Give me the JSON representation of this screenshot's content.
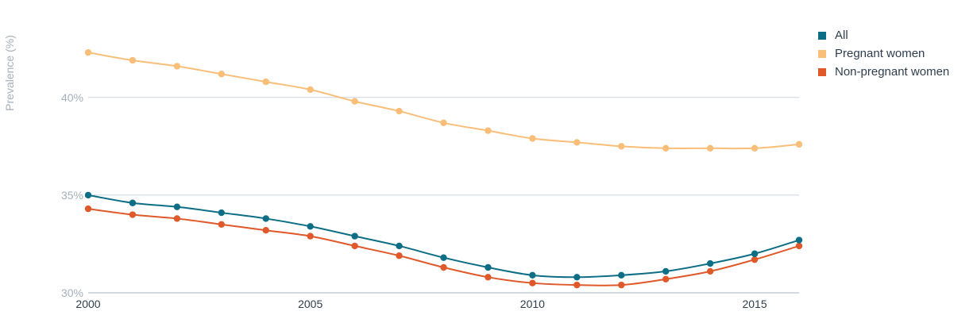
{
  "chart_data": {
    "type": "line",
    "ylabel": "Prevalence (%)",
    "xlabel": "",
    "x": [
      2000,
      2001,
      2002,
      2003,
      2004,
      2005,
      2006,
      2007,
      2008,
      2009,
      2010,
      2011,
      2012,
      2013,
      2014,
      2015,
      2016
    ],
    "xticks": [
      2000,
      2005,
      2010,
      2015
    ],
    "xtick_labels": [
      "2000",
      "2005",
      "2010",
      "2015"
    ],
    "xlim": [
      2000,
      2016
    ],
    "yticks": [
      30,
      35,
      40
    ],
    "ytick_labels": [
      "30%",
      "35%",
      "40%"
    ],
    "ylim": [
      30,
      44.5
    ],
    "grid": "horizontal",
    "legend_position": "top-right",
    "series": [
      {
        "name": "All",
        "color": "#0e6e85",
        "values": [
          35.0,
          34.6,
          34.4,
          34.1,
          33.8,
          33.4,
          32.9,
          32.4,
          31.8,
          31.3,
          30.9,
          30.8,
          30.9,
          31.1,
          31.5,
          32.0,
          32.7
        ]
      },
      {
        "name": "Pregnant women",
        "color": "#f9be78",
        "values": [
          42.3,
          41.9,
          41.6,
          41.2,
          40.8,
          40.4,
          39.8,
          39.3,
          38.7,
          38.3,
          37.9,
          37.7,
          37.5,
          37.4,
          37.4,
          37.4,
          37.6
        ]
      },
      {
        "name": "Non-pregnant women",
        "color": "#e0592a",
        "values": [
          34.3,
          34.0,
          33.8,
          33.5,
          33.2,
          32.9,
          32.4,
          31.9,
          31.3,
          30.8,
          30.5,
          30.4,
          30.4,
          30.7,
          31.1,
          31.7,
          32.4
        ]
      }
    ]
  }
}
